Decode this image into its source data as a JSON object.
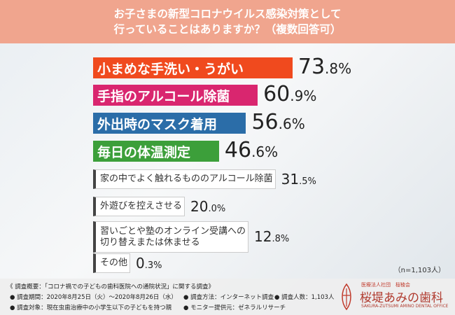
{
  "header": {
    "title_lines": [
      "お子さまの新型コロナウイルス感染対策として",
      "行っていることはありますか？（複数回答可）"
    ]
  },
  "chart_data": {
    "type": "bar",
    "categories": [
      "小まめな手洗い・うがい",
      "手指のアルコール除菌",
      "外出時のマスク着用",
      "毎日の体温測定",
      "家の中でよく触れるもののアルコール除菌",
      "外遊びを控えさせる",
      "習いごとや塾のオンライン受講への\n切り替えまたは休ませる",
      "その他"
    ],
    "values": [
      73.8,
      60.9,
      56.6,
      46.6,
      31.5,
      20.0,
      12.8,
      0.3
    ],
    "value_labels": [
      "73.8%",
      "60.9%",
      "56.6%",
      "46.6%",
      "31.5%",
      "20.0%",
      "12.8%",
      "0.3%"
    ],
    "colors": [
      "#f04a1e",
      "#d9266f",
      "#2b6da8",
      "#3c9f3a",
      "#ffffff",
      "#ffffff",
      "#ffffff",
      "#ffffff"
    ]
  },
  "note": "（n=1,103人）",
  "footer": {
    "heading": "《 調査概要：「コロナ禍での子どもの歯科医院への通院状況」に関する調査》",
    "items": [
      "● 調査期間：2020年8月25日（火）～2020年8月26日（水）",
      "● 調査方法：インターネット調査",
      "● 調査人数：1,103人",
      "● 調査対象：現在虫歯治療中の小学生以下の子どもを持つ親",
      "● モニター提供元：ゼネラルリサーチ"
    ]
  },
  "logo": {
    "org": "医療法人社団　桜稜会",
    "name": "桜堤あみの歯科",
    "english": "SAKURA-ZUTSUMI AMINO DENTAL OFFICE"
  }
}
